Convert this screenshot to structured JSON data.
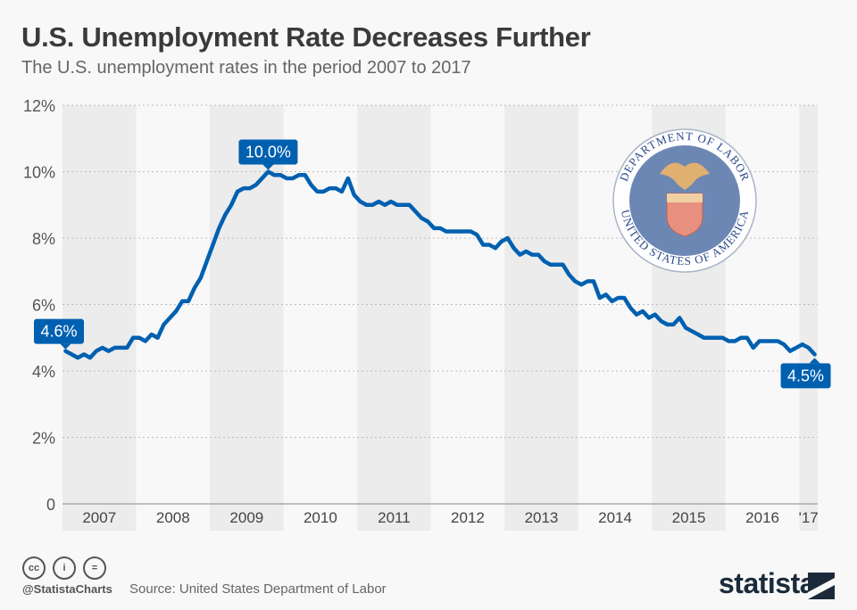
{
  "header": {
    "title": "U.S. Unemployment Rate Decreases Further",
    "subtitle": "The U.S. unemployment rates in the period 2007 to 2017"
  },
  "chart_data": {
    "type": "line",
    "title": "U.S. Unemployment Rate Decreases Further",
    "subtitle": "The U.S. unemployment rates in the period 2007 to 2017",
    "xlabel": "",
    "ylabel": "",
    "ylim": [
      0,
      12
    ],
    "y_ticks": [
      "0",
      "2%",
      "4%",
      "6%",
      "8%",
      "10%",
      "12%"
    ],
    "x_ticks": [
      "2007",
      "2008",
      "2009",
      "2010",
      "2011",
      "2012",
      "2013",
      "2014",
      "2015",
      "2016",
      "'17"
    ],
    "grid": true,
    "x_start": "2007-01",
    "x_end": "2017-03",
    "frequency": "monthly",
    "series": [
      {
        "color": "#0060b0",
        "values": [
          4.6,
          4.5,
          4.4,
          4.5,
          4.4,
          4.6,
          4.7,
          4.6,
          4.7,
          4.7,
          4.7,
          5.0,
          5.0,
          4.9,
          5.1,
          5.0,
          5.4,
          5.6,
          5.8,
          6.1,
          6.1,
          6.5,
          6.8,
          7.3,
          7.8,
          8.3,
          8.7,
          9.0,
          9.4,
          9.5,
          9.5,
          9.6,
          9.8,
          10.0,
          9.9,
          9.9,
          9.8,
          9.8,
          9.9,
          9.9,
          9.6,
          9.4,
          9.4,
          9.5,
          9.5,
          9.4,
          9.8,
          9.3,
          9.1,
          9.0,
          9.0,
          9.1,
          9.0,
          9.1,
          9.0,
          9.0,
          9.0,
          8.8,
          8.6,
          8.5,
          8.3,
          8.3,
          8.2,
          8.2,
          8.2,
          8.2,
          8.2,
          8.1,
          7.8,
          7.8,
          7.7,
          7.9,
          8.0,
          7.7,
          7.5,
          7.6,
          7.5,
          7.5,
          7.3,
          7.2,
          7.2,
          7.2,
          6.9,
          6.7,
          6.6,
          6.7,
          6.7,
          6.2,
          6.3,
          6.1,
          6.2,
          6.2,
          5.9,
          5.7,
          5.8,
          5.6,
          5.7,
          5.5,
          5.4,
          5.4,
          5.6,
          5.3,
          5.2,
          5.1,
          5.0,
          5.0,
          5.0,
          5.0,
          4.9,
          4.9,
          5.0,
          5.0,
          4.7,
          4.9,
          4.9,
          4.9,
          4.9,
          4.8,
          4.6,
          4.7,
          4.8,
          4.7,
          4.5
        ]
      }
    ],
    "annotations": [
      {
        "index": 0,
        "label": "4.6%"
      },
      {
        "index": 33,
        "label": "10.0%"
      },
      {
        "index": 122,
        "label": "4.5%"
      }
    ],
    "band_color": "#ececec"
  },
  "seal": {
    "top_text": "DEPARTMENT OF LABOR",
    "bottom_text": "UNITED STATES OF AMERICA"
  },
  "footer": {
    "handle": "@StatistaCharts",
    "source": "Source: United States Department of Labor",
    "license_icons": [
      "cc-icon",
      "attribution-icon",
      "no-derivatives-icon"
    ],
    "cc_glyphs": [
      "cc",
      "i",
      "="
    ],
    "logo": "statista"
  }
}
